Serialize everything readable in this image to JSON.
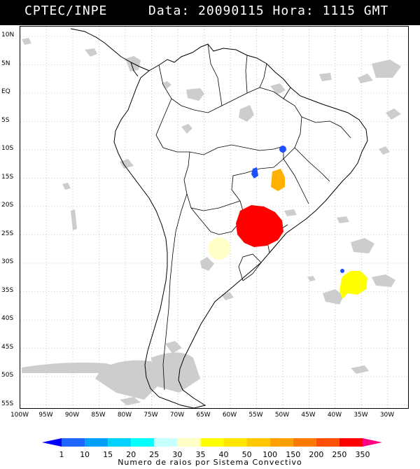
{
  "header": {
    "left": "CPTEC/INPE",
    "right": "Data: 20090115 Hora: 1115 GMT"
  },
  "axes": {
    "lat_labels": [
      "10N",
      "5N",
      "EQ",
      "5S",
      "10S",
      "15S",
      "20S",
      "25S",
      "30S",
      "35S",
      "40S",
      "45S",
      "50S",
      "55S"
    ],
    "lon_labels": [
      "100W",
      "95W",
      "90W",
      "85W",
      "80W",
      "75W",
      "70W",
      "65W",
      "60W",
      "55W",
      "50W",
      "45W",
      "40W",
      "35W",
      "30W"
    ]
  },
  "legend": {
    "values": [
      "1",
      "10",
      "15",
      "20",
      "25",
      "30",
      "35",
      "40",
      "50",
      "100",
      "150",
      "200",
      "250",
      "350"
    ],
    "colors": [
      "#0000ff",
      "#1e64ff",
      "#00a0ff",
      "#00d2ff",
      "#00ffff",
      "#c8ffff",
      "#ffffc8",
      "#ffff00",
      "#ffe600",
      "#ffc800",
      "#ffa000",
      "#ff7800",
      "#ff5000",
      "#ff0000",
      "#ff0080"
    ],
    "caption": "Numero de raios por Sistema Convectivo"
  },
  "colors": {
    "cloud": "#c8c8c8",
    "coast": "#000000",
    "cell_red": "#ff0000",
    "cell_yellow": "#ffff00",
    "cell_orange": "#ffb000",
    "cell_pale": "#ffffc8",
    "cell_blue": "#1e50ff"
  }
}
